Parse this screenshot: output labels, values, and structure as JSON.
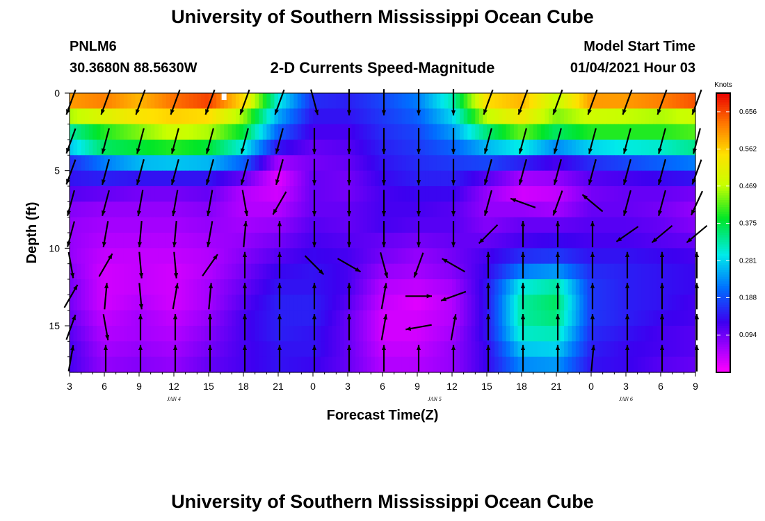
{
  "title_top": "University of Southern Mississippi Ocean Cube",
  "title_bottom": "University of Southern Mississippi Ocean Cube",
  "station": {
    "id": "PNLM6",
    "coords": "30.3680N 88.5630W"
  },
  "model": {
    "label": "Model Start Time",
    "start": "01/04/2021 Hour 03"
  },
  "chart_data": {
    "type": "heatmap",
    "title": "2-D Currents Speed-Magnitude",
    "xlabel": "Forecast Time(Z)",
    "ylabel": "Depth (ft)",
    "x_tick_labels": [
      "3",
      "6",
      "9",
      "12",
      "15",
      "18",
      "21",
      "0",
      "3",
      "6",
      "9",
      "12",
      "15",
      "18",
      "21",
      "0",
      "3",
      "6",
      "9"
    ],
    "day_labels": [
      {
        "label": "JAN 4",
        "at_hour_index": 3
      },
      {
        "label": "JAN 5",
        "at_hour_index": 10.5
      },
      {
        "label": "JAN 6",
        "at_hour_index": 16
      }
    ],
    "x_hours_from_start": [
      0,
      3,
      6,
      9,
      12,
      15,
      18,
      21,
      24,
      27,
      30,
      33,
      36,
      39,
      42,
      45,
      48,
      51,
      54
    ],
    "y_ticks": [
      0,
      5,
      10,
      15
    ],
    "ylim": [
      0,
      18
    ],
    "y_inverted": true,
    "colorbar": {
      "unit": "Knots",
      "range": [
        0,
        0.703
      ],
      "ticks": [
        0.094,
        0.188,
        0.281,
        0.375,
        0.469,
        0.562,
        0.656
      ]
    },
    "speed_grid": {
      "note": "speed in knots, rows = depth levels 0.5..17.5 ft (1 ft step), columns = hour 0..54 every 3 h",
      "rows": [
        [
          0.6,
          0.62,
          0.58,
          0.63,
          0.66,
          0.55,
          0.3,
          0.16,
          0.15,
          0.18,
          0.22,
          0.32,
          0.55,
          0.58,
          0.47,
          0.6,
          0.6,
          0.62,
          0.65
        ],
        [
          0.46,
          0.5,
          0.54,
          0.56,
          0.55,
          0.45,
          0.25,
          0.14,
          0.14,
          0.17,
          0.2,
          0.28,
          0.47,
          0.53,
          0.44,
          0.48,
          0.47,
          0.46,
          0.48
        ],
        [
          0.33,
          0.4,
          0.44,
          0.48,
          0.46,
          0.38,
          0.2,
          0.12,
          0.12,
          0.16,
          0.18,
          0.24,
          0.35,
          0.43,
          0.36,
          0.4,
          0.4,
          0.4,
          0.42
        ],
        [
          0.27,
          0.36,
          0.38,
          0.4,
          0.38,
          0.3,
          0.14,
          0.1,
          0.11,
          0.15,
          0.17,
          0.2,
          0.26,
          0.3,
          0.23,
          0.28,
          0.3,
          0.31,
          0.34
        ],
        [
          0.16,
          0.22,
          0.26,
          0.27,
          0.26,
          0.2,
          0.06,
          0.09,
          0.1,
          0.14,
          0.16,
          0.17,
          0.18,
          0.15,
          0.12,
          0.16,
          0.18,
          0.2,
          0.22
        ],
        [
          0.14,
          0.15,
          0.14,
          0.14,
          0.14,
          0.1,
          0.02,
          0.1,
          0.09,
          0.13,
          0.15,
          0.15,
          0.11,
          0.06,
          0.07,
          0.11,
          0.12,
          0.13,
          0.14
        ],
        [
          0.11,
          0.1,
          0.09,
          0.09,
          0.1,
          0.05,
          0.03,
          0.1,
          0.09,
          0.12,
          0.13,
          0.13,
          0.07,
          0.03,
          0.04,
          0.09,
          0.1,
          0.1,
          0.09
        ],
        [
          0.08,
          0.07,
          0.07,
          0.07,
          0.08,
          0.05,
          0.05,
          0.1,
          0.1,
          0.12,
          0.12,
          0.11,
          0.07,
          0.07,
          0.06,
          0.1,
          0.1,
          0.09,
          0.07
        ],
        [
          0.07,
          0.06,
          0.06,
          0.06,
          0.07,
          0.06,
          0.07,
          0.11,
          0.1,
          0.12,
          0.11,
          0.11,
          0.08,
          0.1,
          0.1,
          0.11,
          0.11,
          0.1,
          0.08
        ],
        [
          0.07,
          0.05,
          0.05,
          0.05,
          0.06,
          0.07,
          0.09,
          0.12,
          0.11,
          0.1,
          0.09,
          0.1,
          0.1,
          0.12,
          0.13,
          0.12,
          0.12,
          0.11,
          0.1
        ],
        [
          0.07,
          0.04,
          0.04,
          0.04,
          0.05,
          0.08,
          0.11,
          0.13,
          0.12,
          0.09,
          0.07,
          0.09,
          0.12,
          0.16,
          0.17,
          0.14,
          0.14,
          0.13,
          0.12
        ],
        [
          0.08,
          0.03,
          0.04,
          0.03,
          0.05,
          0.09,
          0.13,
          0.14,
          0.12,
          0.07,
          0.06,
          0.08,
          0.13,
          0.22,
          0.24,
          0.16,
          0.15,
          0.14,
          0.13
        ],
        [
          0.09,
          0.03,
          0.04,
          0.03,
          0.06,
          0.1,
          0.14,
          0.14,
          0.12,
          0.05,
          0.04,
          0.06,
          0.14,
          0.3,
          0.33,
          0.17,
          0.15,
          0.14,
          0.13
        ],
        [
          0.09,
          0.03,
          0.05,
          0.03,
          0.06,
          0.11,
          0.15,
          0.15,
          0.11,
          0.04,
          0.02,
          0.05,
          0.14,
          0.33,
          0.36,
          0.17,
          0.15,
          0.14,
          0.12
        ],
        [
          0.1,
          0.04,
          0.06,
          0.04,
          0.07,
          0.12,
          0.15,
          0.15,
          0.1,
          0.03,
          0.03,
          0.05,
          0.14,
          0.33,
          0.35,
          0.17,
          0.15,
          0.13,
          0.12
        ],
        [
          0.11,
          0.05,
          0.06,
          0.05,
          0.08,
          0.12,
          0.15,
          0.14,
          0.1,
          0.03,
          0.03,
          0.06,
          0.14,
          0.31,
          0.32,
          0.16,
          0.14,
          0.12,
          0.11
        ],
        [
          0.12,
          0.06,
          0.07,
          0.06,
          0.09,
          0.12,
          0.14,
          0.14,
          0.1,
          0.04,
          0.04,
          0.07,
          0.13,
          0.27,
          0.28,
          0.15,
          0.13,
          0.12,
          0.11
        ],
        [
          0.12,
          0.07,
          0.08,
          0.07,
          0.1,
          0.12,
          0.14,
          0.13,
          0.1,
          0.05,
          0.05,
          0.07,
          0.13,
          0.23,
          0.24,
          0.14,
          0.13,
          0.11,
          0.1
        ]
      ]
    },
    "current_vectors": {
      "note": "direction in degrees clockwise from north (0 = pointing up/north), at depth levels in ft, every 3 h",
      "depths_ft": [
        0.5,
        3,
        5,
        7,
        9,
        11,
        13,
        15,
        17
      ],
      "directions_deg": [
        [
          200,
          200,
          200,
          200,
          200,
          200,
          200,
          165,
          180,
          180,
          180,
          180,
          200,
          200,
          200,
          200,
          200,
          200,
          200
        ],
        [
          200,
          195,
          195,
          195,
          195,
          195,
          195,
          180,
          180,
          180,
          180,
          180,
          195,
          195,
          195,
          195,
          195,
          195,
          195
        ],
        [
          200,
          195,
          195,
          195,
          195,
          195,
          195,
          180,
          180,
          180,
          180,
          180,
          195,
          195,
          195,
          195,
          195,
          195,
          200
        ],
        [
          195,
          195,
          190,
          190,
          190,
          170,
          210,
          180,
          180,
          180,
          180,
          180,
          195,
          290,
          200,
          310,
          195,
          195,
          205
        ],
        [
          195,
          190,
          185,
          185,
          190,
          5,
          0,
          180,
          180,
          180,
          180,
          180,
          225,
          0,
          0,
          0,
          235,
          230,
          230
        ],
        [
          170,
          30,
          175,
          175,
          35,
          0,
          0,
          135,
          120,
          165,
          200,
          300,
          0,
          0,
          0,
          0,
          0,
          0,
          0
        ],
        [
          30,
          5,
          175,
          10,
          5,
          0,
          0,
          0,
          0,
          10,
          90,
          250,
          0,
          0,
          0,
          0,
          0,
          0,
          0
        ],
        [
          20,
          170,
          0,
          0,
          0,
          0,
          0,
          0,
          0,
          10,
          260,
          10,
          0,
          0,
          0,
          0,
          0,
          0,
          0
        ],
        [
          10,
          0,
          0,
          0,
          0,
          0,
          0,
          0,
          0,
          0,
          0,
          0,
          0,
          0,
          0,
          5,
          0,
          0,
          0
        ]
      ]
    }
  }
}
